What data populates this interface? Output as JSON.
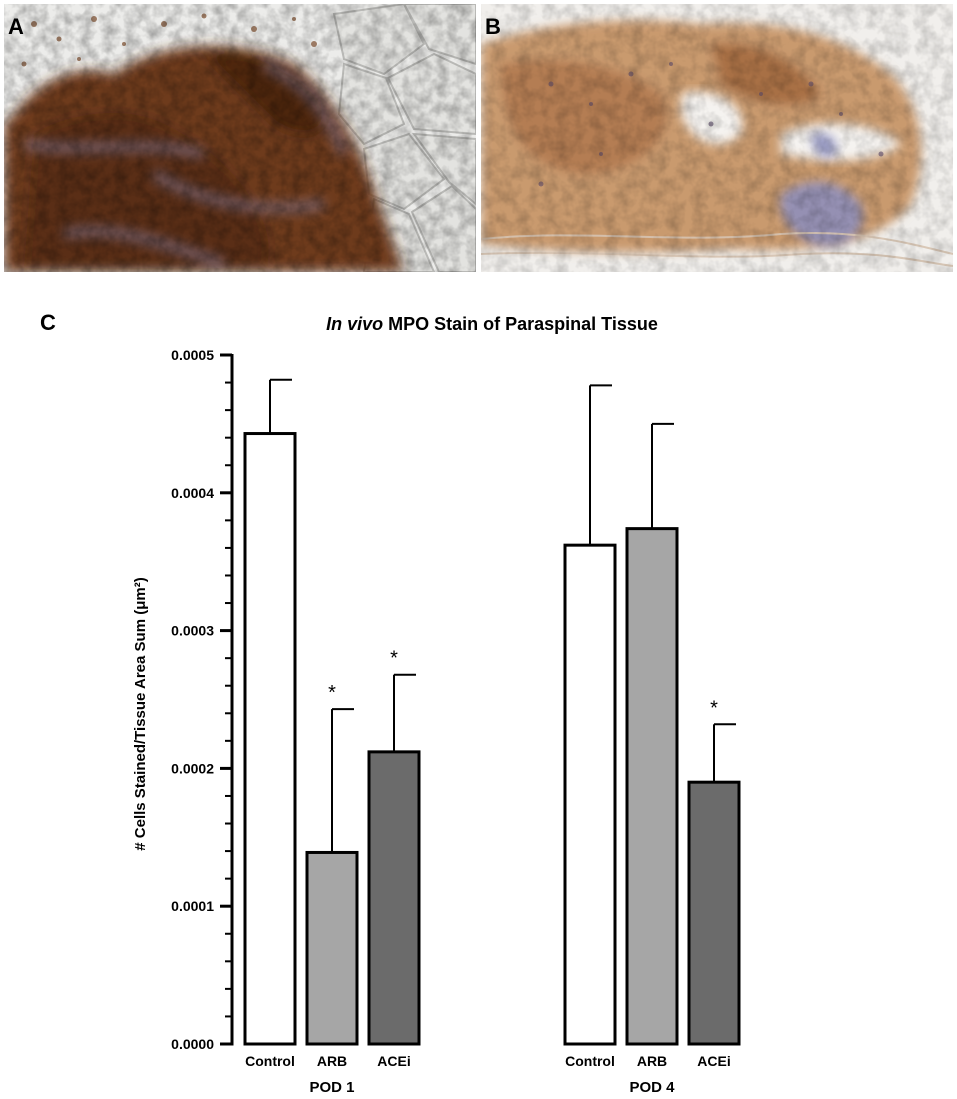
{
  "panels": {
    "a_label": "A",
    "b_label": "B",
    "c_label": "C"
  },
  "colors": {
    "stain_brown": "#6e3a1c",
    "stain_tan": "#c99a6e",
    "hematoxylin": "#8c8fc0",
    "bar_control": "#ffffff",
    "bar_arb": "#a6a6a6",
    "bar_acei": "#6b6b6b"
  },
  "chart_data": {
    "type": "bar",
    "title_italic": "In vivo",
    "title_rest": " MPO Stain of Paraspinal Tissue",
    "ylabel": "# Cells Stained/Tissue Area Sum (μm²)",
    "ylim": [
      0,
      0.0005
    ],
    "yticks": [
      "0.0000",
      "0.0001",
      "0.0002",
      "0.0003",
      "0.0004",
      "0.0005"
    ],
    "groups": [
      {
        "name": "POD 1",
        "bars": [
          {
            "label": "Control",
            "value": 0.000443,
            "error": 3.9e-05,
            "sig": "",
            "color": "#ffffff"
          },
          {
            "label": "ARB",
            "value": 0.000139,
            "error": 0.000104,
            "sig": "*",
            "color": "#a6a6a6"
          },
          {
            "label": "ACEi",
            "value": 0.000212,
            "error": 5.6e-05,
            "sig": "*",
            "color": "#6b6b6b"
          }
        ]
      },
      {
        "name": "POD 4",
        "bars": [
          {
            "label": "Control",
            "value": 0.000362,
            "error": 0.000116,
            "sig": "",
            "color": "#ffffff"
          },
          {
            "label": "ARB",
            "value": 0.000374,
            "error": 7.6e-05,
            "sig": "",
            "color": "#a6a6a6"
          },
          {
            "label": "ACEi",
            "value": 0.00019,
            "error": 4.2e-05,
            "sig": "*",
            "color": "#6b6b6b"
          }
        ]
      }
    ]
  }
}
